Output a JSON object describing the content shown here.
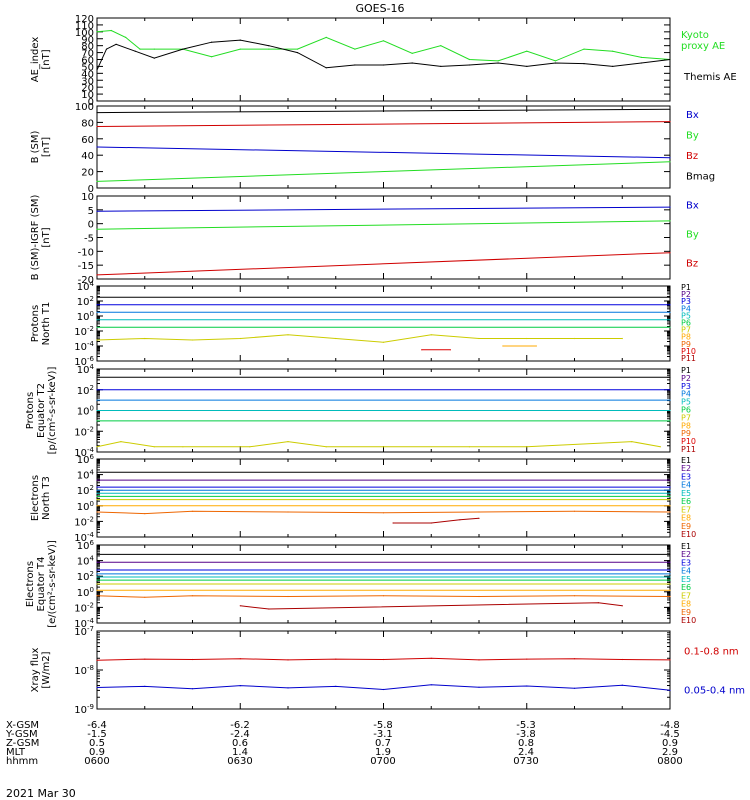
{
  "title": "GOES-16",
  "date": "2021 Mar 30",
  "colors": {
    "black": "#000000",
    "green": "#22dd22",
    "red": "#d00000",
    "blue": "#0000cc",
    "P": [
      "#000000",
      "#550088",
      "#0000dd",
      "#0077dd",
      "#00bbbb",
      "#00cc44",
      "#cccc00",
      "#ffaa00",
      "#ee6600",
      "#dd0000",
      "#aa0000"
    ],
    "E": [
      "#000000",
      "#550088",
      "#0000dd",
      "#0077dd",
      "#00bbbb",
      "#00cc44",
      "#cccc00",
      "#ffaa00",
      "#ee6600",
      "#aa0000"
    ]
  },
  "orbit": {
    "labels": [
      "X-GSM",
      "Y-GSM",
      "Z-GSM",
      "MLT",
      "hhmm"
    ],
    "columns": [
      [
        "-6.4",
        "-1.5",
        "0.5",
        "0.9",
        "0600"
      ],
      [
        "-6.2",
        "-2.4",
        "0.6",
        "1.4",
        "0630"
      ],
      [
        "-5.8",
        "-3.1",
        "0.7",
        "1.9",
        "0700"
      ],
      [
        "-5.3",
        "-3.8",
        "0.8",
        "2.4",
        "0730"
      ],
      [
        "-4.8",
        "-4.5",
        "0.9",
        "2.9",
        "0800"
      ]
    ]
  },
  "chart_data": [
    {
      "type": "line",
      "ylabel": "AE_index\n[nT]",
      "ylim": [
        0,
        120
      ],
      "yticks": [
        "0",
        "10",
        "20",
        "30",
        "40",
        "50",
        "60",
        "70",
        "80",
        "90",
        "100",
        "110",
        "120"
      ],
      "series": [
        {
          "name": "Kyoto\nproxy AE",
          "color": "green",
          "x": [
            0,
            3,
            6,
            9,
            12,
            18,
            24,
            30,
            36,
            42,
            48,
            54,
            60,
            66,
            72,
            78,
            84,
            90,
            96,
            102,
            108,
            114,
            120
          ],
          "y": [
            100,
            102,
            92,
            75,
            75,
            75,
            64,
            75,
            75,
            75,
            92,
            75,
            87,
            69,
            80,
            60,
            58,
            72,
            58,
            75,
            72,
            63,
            60
          ]
        },
        {
          "name": "Themis AE",
          "color": "black",
          "x": [
            0,
            2,
            4,
            8,
            12,
            18,
            24,
            30,
            36,
            42,
            48,
            54,
            60,
            66,
            72,
            78,
            84,
            90,
            96,
            102,
            108,
            114,
            120
          ],
          "y": [
            45,
            75,
            82,
            72,
            62,
            75,
            85,
            88,
            80,
            70,
            48,
            52,
            52,
            55,
            50,
            52,
            55,
            50,
            55,
            54,
            50,
            55,
            60
          ]
        }
      ]
    },
    {
      "type": "line",
      "ylabel": "B (SM)\n[nT]",
      "ylim": [
        0,
        100
      ],
      "yticks": [
        "0",
        "20",
        "40",
        "60",
        "80",
        "100"
      ],
      "series": [
        {
          "name": "Bx",
          "color": "blue",
          "x": [
            0,
            120
          ],
          "y": [
            50,
            37
          ]
        },
        {
          "name": "By",
          "color": "green",
          "x": [
            0,
            120
          ],
          "y": [
            8,
            32
          ]
        },
        {
          "name": "Bz",
          "color": "red",
          "x": [
            0,
            120
          ],
          "y": [
            75,
            81
          ]
        },
        {
          "name": "Bmag",
          "color": "black",
          "x": [
            0,
            120
          ],
          "y": [
            92,
            96
          ]
        }
      ]
    },
    {
      "type": "line",
      "ylabel": "B (SM)-IGRF (SM)\n[nT]",
      "ylim": [
        -20,
        10
      ],
      "yticks": [
        "-20",
        "-15",
        "-10",
        "-5",
        "0",
        "5",
        "10"
      ],
      "series": [
        {
          "name": "Bx",
          "color": "blue",
          "x": [
            0,
            120
          ],
          "y": [
            4.5,
            6
          ]
        },
        {
          "name": "By",
          "color": "green",
          "x": [
            0,
            120
          ],
          "y": [
            -2,
            1
          ]
        },
        {
          "name": "Bz",
          "color": "red",
          "x": [
            0,
            120
          ],
          "y": [
            -18.5,
            -10.5
          ]
        }
      ]
    },
    {
      "type": "line",
      "log": true,
      "ylabel": "Protons\nNorth T1",
      "ylim": [
        -6,
        4
      ],
      "yticks": [
        "10^-6",
        "10^-4",
        "10^-2",
        "10^0",
        "10^2",
        "10^4"
      ],
      "legend": [
        "P1",
        "P2",
        "P3",
        "P4",
        "P5",
        "P6",
        "P7",
        "P8",
        "P9",
        "P10",
        "P11"
      ],
      "series": [
        {
          "name": "P1",
          "x": [
            0,
            120
          ],
          "y": [
            2.5,
            2.5
          ]
        },
        {
          "name": "P3",
          "x": [
            0,
            120
          ],
          "y": [
            1.5,
            1.5
          ]
        },
        {
          "name": "P4",
          "x": [
            0,
            120
          ],
          "y": [
            0.5,
            0.5
          ]
        },
        {
          "name": "P5",
          "x": [
            0,
            120
          ],
          "y": [
            -0.5,
            -0.5
          ]
        },
        {
          "name": "P6",
          "x": [
            0,
            120
          ],
          "y": [
            -1.5,
            -1.5
          ]
        },
        {
          "name": "P7",
          "x": [
            0,
            10,
            20,
            30,
            40,
            50,
            60,
            70,
            80,
            90,
            100,
            110
          ],
          "y": [
            -3.2,
            -3,
            -3.2,
            -3,
            -2.5,
            -3,
            -3.5,
            -2.5,
            -3,
            -3,
            -3,
            -3
          ]
        },
        {
          "name": "P8",
          "x": [
            85,
            92
          ],
          "y": [
            -4.0,
            -4.0
          ]
        },
        {
          "name": "P10",
          "x": [
            68,
            74
          ],
          "y": [
            -4.5,
            -4.5
          ]
        }
      ]
    },
    {
      "type": "line",
      "log": true,
      "ylabel": "Protons\nEquator T2\n[p/(cm²-s-sr-keV)]",
      "ylim": [
        -4,
        4
      ],
      "yticks": [
        "10^-4",
        "10^-2",
        "10^0",
        "10^2",
        "10^4"
      ],
      "legend": [
        "P1",
        "P2",
        "P3",
        "P4",
        "P5",
        "P6",
        "P7",
        "P8",
        "P9",
        "P10",
        "P11"
      ],
      "series": [
        {
          "name": "P1",
          "x": [
            0,
            120
          ],
          "y": [
            3.2,
            3.2
          ]
        },
        {
          "name": "P3",
          "x": [
            0,
            120
          ],
          "y": [
            2.0,
            2.0
          ]
        },
        {
          "name": "P4",
          "x": [
            0,
            120
          ],
          "y": [
            1.0,
            1.0
          ]
        },
        {
          "name": "P5",
          "x": [
            0,
            120
          ],
          "y": [
            0.0,
            0.0
          ]
        },
        {
          "name": "P6",
          "x": [
            0,
            120
          ],
          "y": [
            -1.0,
            -1.0
          ]
        },
        {
          "name": "P7",
          "x": [
            0,
            5,
            12,
            18,
            32,
            40,
            48,
            60,
            78,
            90,
            112,
            118
          ],
          "y": [
            -3.5,
            -3,
            -3.5,
            -3.5,
            -3.5,
            -3,
            -3.5,
            -3.5,
            -3.5,
            -3.5,
            -3,
            -3.5
          ]
        }
      ]
    },
    {
      "type": "line",
      "log": true,
      "ylabel": "Electrons\nNorth T3",
      "ylim": [
        -4,
        6
      ],
      "yticks": [
        "10^-4",
        "10^-2",
        "10^0",
        "10^2",
        "10^4",
        "10^6"
      ],
      "legend": [
        "E1",
        "E2",
        "E3",
        "E4",
        "E5",
        "E6",
        "E7",
        "E8",
        "E9",
        "E10"
      ],
      "series": [
        {
          "name": "E1",
          "x": [
            0,
            120
          ],
          "y": [
            4.3,
            4.3
          ]
        },
        {
          "name": "E2",
          "x": [
            0,
            120
          ],
          "y": [
            3.3,
            3.3
          ]
        },
        {
          "name": "E3",
          "x": [
            0,
            120
          ],
          "y": [
            2.4,
            2.4
          ]
        },
        {
          "name": "E4",
          "x": [
            0,
            120
          ],
          "y": [
            2.0,
            2.0
          ]
        },
        {
          "name": "E5",
          "x": [
            0,
            120
          ],
          "y": [
            1.6,
            1.6
          ]
        },
        {
          "name": "E6",
          "x": [
            0,
            120
          ],
          "y": [
            1.2,
            1.2
          ]
        },
        {
          "name": "E7",
          "x": [
            0,
            120
          ],
          "y": [
            0.8,
            0.8
          ]
        },
        {
          "name": "E8",
          "x": [
            0,
            120
          ],
          "y": [
            0.0,
            0.0
          ]
        },
        {
          "name": "E9",
          "x": [
            0,
            10,
            20,
            40,
            60,
            80,
            100,
            120
          ],
          "y": [
            -0.8,
            -1.0,
            -0.7,
            -0.8,
            -0.9,
            -0.8,
            -0.7,
            -0.8
          ]
        },
        {
          "name": "E10",
          "x": [
            62,
            70,
            76,
            80
          ],
          "y": [
            -2.2,
            -2.2,
            -1.8,
            -1.6
          ]
        }
      ]
    },
    {
      "type": "line",
      "log": true,
      "ylabel": "Electrons\nEquator T4\n[e/(cm²-s-sr-keV)]",
      "ylim": [
        -4,
        6
      ],
      "yticks": [
        "10^-4",
        "10^-2",
        "10^0",
        "10^2",
        "10^4",
        "10^6"
      ],
      "legend": [
        "E1",
        "E2",
        "E3",
        "E4",
        "E5",
        "E6",
        "E7",
        "E8",
        "E9",
        "E10"
      ],
      "series": [
        {
          "name": "E1",
          "x": [
            0,
            120
          ],
          "y": [
            4.8,
            4.8
          ]
        },
        {
          "name": "E2",
          "x": [
            0,
            120
          ],
          "y": [
            3.8,
            3.8
          ]
        },
        {
          "name": "E3",
          "x": [
            0,
            120
          ],
          "y": [
            2.8,
            2.8
          ]
        },
        {
          "name": "E4",
          "x": [
            0,
            120
          ],
          "y": [
            2.3,
            2.3
          ]
        },
        {
          "name": "E5",
          "x": [
            0,
            120
          ],
          "y": [
            1.9,
            1.9
          ]
        },
        {
          "name": "E6",
          "x": [
            0,
            120
          ],
          "y": [
            1.5,
            1.5
          ]
        },
        {
          "name": "E7",
          "x": [
            0,
            120
          ],
          "y": [
            1.0,
            1.0
          ]
        },
        {
          "name": "E8",
          "x": [
            0,
            120
          ],
          "y": [
            0.2,
            0.2
          ]
        },
        {
          "name": "E9",
          "x": [
            0,
            10,
            20,
            40,
            60,
            80,
            100,
            120
          ],
          "y": [
            -0.5,
            -0.7,
            -0.5,
            -0.6,
            -0.5,
            -0.6,
            -0.5,
            -0.6
          ]
        },
        {
          "name": "E10",
          "x": [
            30,
            36,
            105,
            110
          ],
          "y": [
            -1.8,
            -2.2,
            -1.4,
            -1.8
          ]
        }
      ]
    },
    {
      "type": "line",
      "log": true,
      "ylabel": "Xray flux\n[W/m2]",
      "ylim": [
        -9,
        -7
      ],
      "yticks": [
        "10^-9",
        "10^-8",
        "10^-7"
      ],
      "series": [
        {
          "name": "0.1-0.8 nm",
          "color": "red",
          "x": [
            0,
            10,
            20,
            30,
            40,
            50,
            60,
            70,
            80,
            90,
            100,
            110,
            120
          ],
          "y": [
            -7.75,
            -7.72,
            -7.73,
            -7.71,
            -7.74,
            -7.72,
            -7.73,
            -7.7,
            -7.74,
            -7.72,
            -7.71,
            -7.73,
            -7.74
          ]
        },
        {
          "name": "0.05-0.4 nm",
          "color": "blue",
          "x": [
            0,
            10,
            20,
            30,
            40,
            50,
            60,
            70,
            80,
            90,
            100,
            110,
            120
          ],
          "y": [
            -8.45,
            -8.42,
            -8.48,
            -8.4,
            -8.46,
            -8.42,
            -8.5,
            -8.38,
            -8.44,
            -8.41,
            -8.47,
            -8.39,
            -8.52
          ]
        }
      ]
    }
  ]
}
